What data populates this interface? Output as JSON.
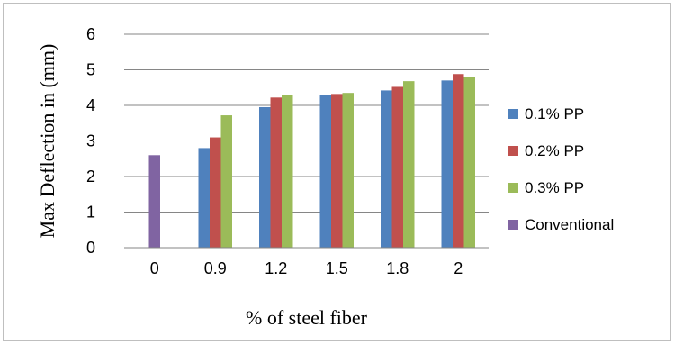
{
  "chart_data": {
    "type": "bar",
    "title": "",
    "xlabel": "% of steel fiber",
    "ylabel": "Max Deflection in (mm)",
    "categories": [
      "0",
      "0.9",
      "1.2",
      "1.5",
      "1.8",
      "2"
    ],
    "ylim": [
      0,
      6
    ],
    "yticks": [
      0,
      1,
      2,
      3,
      4,
      5,
      6
    ],
    "grid": true,
    "legend_position": "right",
    "series": [
      {
        "name": "0.1% PP",
        "color": "#4f81bd",
        "values": [
          null,
          2.8,
          3.95,
          4.3,
          4.42,
          4.7
        ]
      },
      {
        "name": "0.2% PP",
        "color": "#c0504d",
        "values": [
          null,
          3.1,
          4.22,
          4.32,
          4.52,
          4.88
        ]
      },
      {
        "name": "0.3% PP",
        "color": "#9bbb59",
        "values": [
          null,
          3.72,
          4.28,
          4.35,
          4.68,
          4.8
        ]
      },
      {
        "name": "Conventional",
        "color": "#8064a2",
        "values": [
          2.6,
          null,
          null,
          null,
          null,
          null
        ]
      }
    ]
  }
}
